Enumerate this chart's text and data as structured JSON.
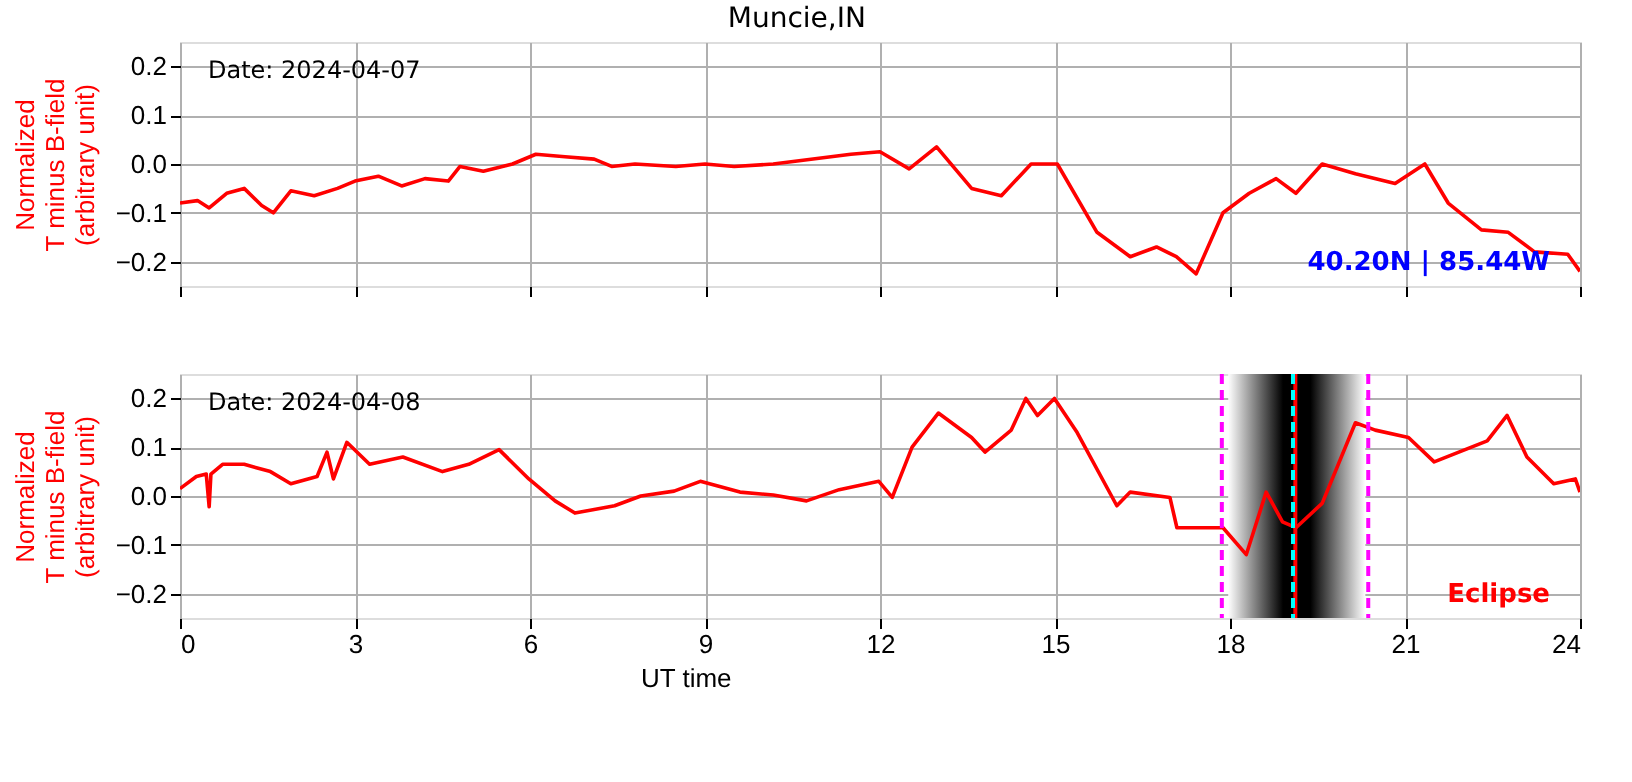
{
  "chart_data": [
    {
      "type": "line",
      "title": "Muncie,IN",
      "ylabel": "Normalized\nT minus B-field\n(arbitrary unit)",
      "annotations": [
        "Date: 2024-04-07",
        "40.20N | 85.44W"
      ],
      "xlim": [
        0,
        24
      ],
      "xticks": [
        0,
        3,
        6,
        9,
        12,
        15,
        18,
        21,
        24
      ],
      "ylim": [
        -0.25,
        0.25
      ],
      "yticks": [
        {
          "value": -0.2,
          "label": "−0.2"
        },
        {
          "value": -0.1,
          "label": "−0.1"
        },
        {
          "value": 0.0,
          "label": "0.0"
        },
        {
          "value": 0.1,
          "label": "0.1"
        },
        {
          "value": 0.2,
          "label": "0.2"
        }
      ],
      "grid": true,
      "tick_labels": "y",
      "series": [
        {
          "color": "#ff0000",
          "x": [
            0,
            0.3,
            0.5,
            0.8,
            1.1,
            1.4,
            1.6,
            1.9,
            2.3,
            2.7,
            3.0,
            3.4,
            3.8,
            4.2,
            4.6,
            4.8,
            5.2,
            5.7,
            6.1,
            6.6,
            7.1,
            7.4,
            7.8,
            8.5,
            9.0,
            9.5,
            10.17,
            11.5,
            12.0,
            12.5,
            12.97,
            13.57,
            14.08,
            14.59,
            15.04,
            15.72,
            16.29,
            16.74,
            17.08,
            17.42,
            17.88,
            18.33,
            18.79,
            19.13,
            19.58,
            20.15,
            20.83,
            21.34,
            21.74,
            22.31,
            22.77,
            23.22,
            23.79,
            24
          ],
          "values": [
            -0.08,
            -0.075,
            -0.09,
            -0.06,
            -0.05,
            -0.085,
            -0.1,
            -0.055,
            -0.065,
            -0.05,
            -0.035,
            -0.025,
            -0.045,
            -0.03,
            -0.035,
            -0.005,
            -0.015,
            0.0,
            0.02,
            0.015,
            0.01,
            -0.005,
            0.0,
            -0.005,
            0.0,
            -0.005,
            0.0,
            0.02,
            0.025,
            -0.01,
            0.035,
            -0.05,
            -0.065,
            0.0,
            0.0,
            -0.14,
            -0.19,
            -0.17,
            -0.19,
            -0.225,
            -0.1,
            -0.06,
            -0.03,
            -0.06,
            0.0,
            -0.02,
            -0.04,
            0.0,
            -0.08,
            -0.135,
            -0.14,
            -0.18,
            -0.185,
            -0.22
          ]
        }
      ]
    },
    {
      "type": "line",
      "xlabel": "UT time",
      "ylabel": "Normalized\nT minus B-field\n(arbitrary unit)",
      "annotations": [
        "Date: 2024-04-08",
        "Eclipse"
      ],
      "xlim": [
        0,
        24
      ],
      "xticks": [
        0,
        3,
        6,
        9,
        12,
        15,
        18,
        21,
        24
      ],
      "ylim": [
        -0.25,
        0.25
      ],
      "yticks": [
        {
          "value": -0.2,
          "label": "−0.2"
        },
        {
          "value": -0.1,
          "label": "−0.1"
        },
        {
          "value": 0.0,
          "label": "0.0"
        },
        {
          "value": 0.1,
          "label": "0.1"
        },
        {
          "value": 0.2,
          "label": "0.2"
        }
      ],
      "grid": true,
      "bands": [
        {
          "axis": "x",
          "from": 17.97,
          "to": 20.32,
          "color": "#000000"
        }
      ],
      "ref_lines": [
        {
          "axis": "x",
          "value": 17.86,
          "color": "#ff00ff",
          "line_style": "dashed"
        },
        {
          "axis": "x",
          "value": 20.37,
          "color": "#ff00ff",
          "line_style": "dashed"
        },
        {
          "axis": "x",
          "value": 19.12,
          "color": "#ff0000",
          "line_style": "solid"
        },
        {
          "axis": "x",
          "value": 19.08,
          "color": "#00ffff",
          "line_style": "dashed"
        }
      ],
      "series": [
        {
          "color": "#ff0000",
          "x": [
            0,
            0.28,
            0.45,
            0.5,
            0.53,
            0.73,
            1.1,
            1.55,
            1.9,
            2.35,
            2.52,
            2.63,
            2.86,
            3.25,
            3.82,
            4.5,
            4.95,
            5.47,
            5.98,
            6.43,
            6.77,
            7.45,
            7.9,
            8.47,
            8.92,
            9.6,
            10.17,
            10.74,
            11.3,
            11.98,
            12.21,
            12.55,
            13.0,
            13.57,
            13.8,
            14.25,
            14.5,
            14.7,
            14.99,
            15.38,
            16.06,
            16.29,
            16.97,
            17.09,
            17.88,
            18.28,
            18.62,
            18.9,
            19.13,
            19.58,
            20.15,
            20.49,
            21.06,
            21.5,
            22.41,
            22.75,
            23.09,
            23.55,
            23.92,
            24
          ],
          "values": [
            0.015,
            0.04,
            0.045,
            -0.022,
            0.045,
            0.065,
            0.065,
            0.05,
            0.025,
            0.04,
            0.09,
            0.035,
            0.11,
            0.065,
            0.08,
            0.05,
            0.065,
            0.095,
            0.035,
            -0.01,
            -0.035,
            -0.02,
            0.0,
            0.01,
            0.03,
            0.008,
            0.002,
            -0.01,
            0.013,
            0.03,
            -0.003,
            0.1,
            0.17,
            0.12,
            0.09,
            0.135,
            0.2,
            0.165,
            0.2,
            0.13,
            -0.02,
            0.008,
            -0.003,
            -0.065,
            -0.065,
            -0.12,
            0.008,
            -0.053,
            -0.065,
            -0.015,
            0.15,
            0.135,
            0.12,
            0.07,
            0.113,
            0.165,
            0.08,
            0.025,
            0.035,
            0.008
          ]
        }
      ]
    }
  ]
}
